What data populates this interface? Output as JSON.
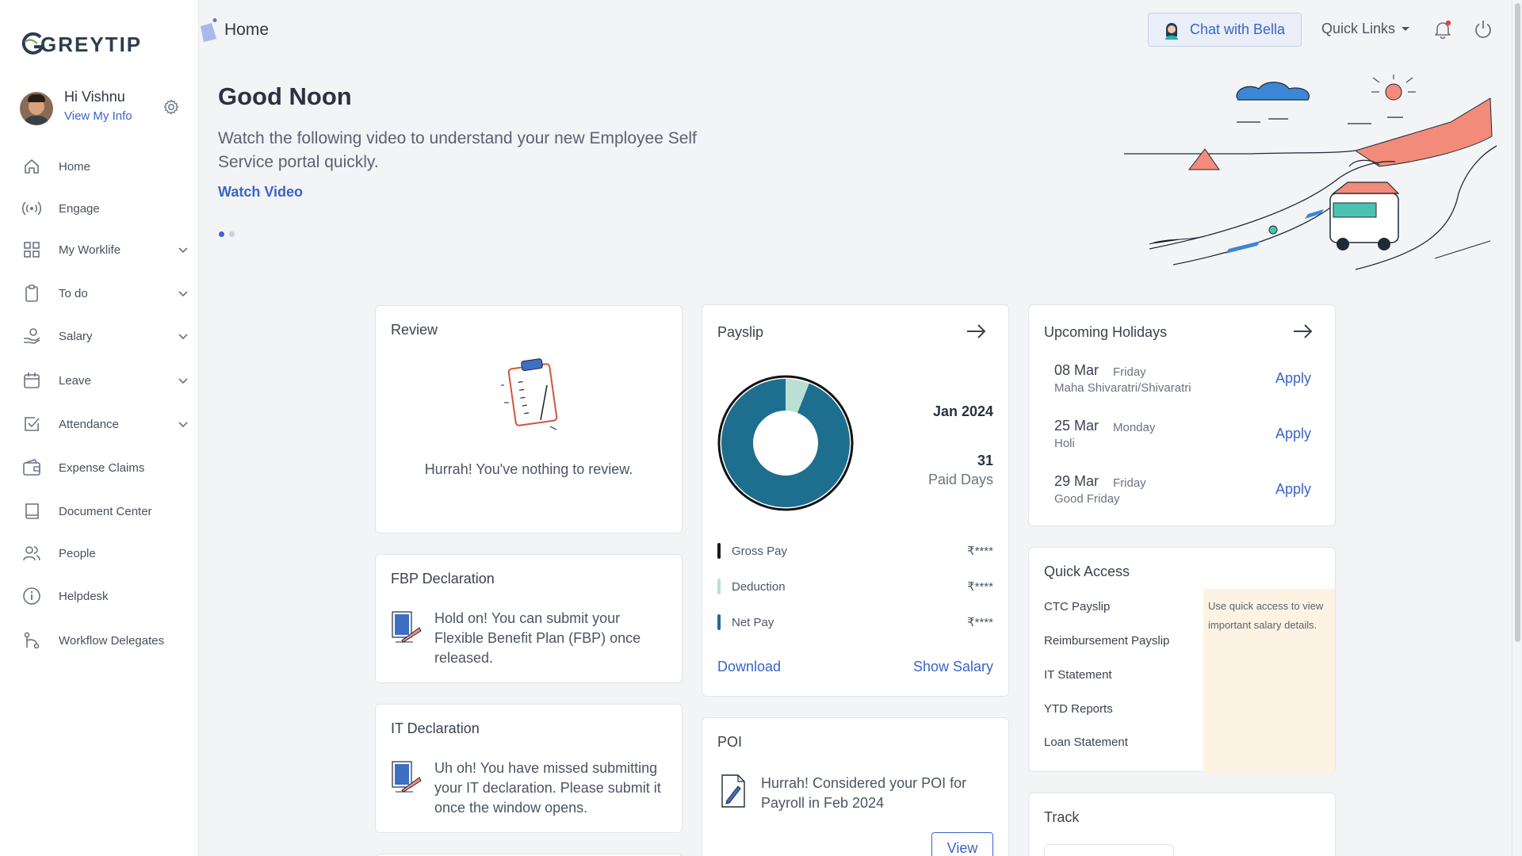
{
  "brand": {
    "name": "GREYTIP"
  },
  "user": {
    "greeting": "Hi Vishnu",
    "link": "View My Info"
  },
  "nav": [
    {
      "label": "Home",
      "icon": "home-icon",
      "expandable": false
    },
    {
      "label": "Engage",
      "icon": "broadcast-icon",
      "expandable": false
    },
    {
      "label": "My Worklife",
      "icon": "grid-icon",
      "expandable": true
    },
    {
      "label": "To do",
      "icon": "clipboard-icon",
      "expandable": true
    },
    {
      "label": "Salary",
      "icon": "hand-money-icon",
      "expandable": true
    },
    {
      "label": "Leave",
      "icon": "calendar-icon",
      "expandable": true
    },
    {
      "label": "Attendance",
      "icon": "check-square-icon",
      "expandable": true
    },
    {
      "label": "Expense Claims",
      "icon": "wallet-icon",
      "expandable": false
    },
    {
      "label": "Document Center",
      "icon": "book-icon",
      "expandable": false
    },
    {
      "label": "People",
      "icon": "people-icon",
      "expandable": false
    },
    {
      "label": "Helpdesk",
      "icon": "info-icon",
      "expandable": false
    },
    {
      "label": "Workflow Delegates",
      "icon": "workflow-icon",
      "expandable": false
    }
  ],
  "header": {
    "breadcrumb": "Home",
    "chat_label": "Chat with Bella",
    "quick_links": "Quick Links"
  },
  "hero": {
    "greeting": "Good Noon",
    "intro": "Watch the following video to understand your new Employee Self Service portal quickly.",
    "cta": "Watch Video",
    "slides": 2,
    "active_slide": 1
  },
  "review": {
    "title": "Review",
    "message": "Hurrah! You've nothing to review."
  },
  "fbp": {
    "title": "FBP Declaration",
    "message": "Hold on! You can submit your Flexible Benefit Plan (FBP) once released."
  },
  "it": {
    "title": "IT Declaration",
    "message": "Uh oh! You have missed submitting your IT declaration. Please submit it once the window opens."
  },
  "payslip": {
    "title": "Payslip",
    "month": "Jan 2024",
    "paid_days": "31",
    "paid_days_label": "Paid Days",
    "rows": [
      {
        "label": "Gross Pay",
        "value": "₹****",
        "color": "#1a1a1a"
      },
      {
        "label": "Deduction",
        "value": "₹****",
        "color": "#b9e0d2"
      },
      {
        "label": "Net Pay",
        "value": "₹****",
        "color": "#1e6f8f"
      }
    ],
    "donut_net_fraction": 0.94,
    "download": "Download",
    "show_salary": "Show Salary"
  },
  "poi": {
    "title": "POI",
    "message": "Hurrah! Considered your POI for Payroll in Feb 2024",
    "view": "View"
  },
  "holidays": {
    "title": "Upcoming Holidays",
    "items": [
      {
        "date": "08 Mar",
        "day": "Friday",
        "name": "Maha Shivaratri/Shivaratri",
        "action": "Apply"
      },
      {
        "date": "25 Mar",
        "day": "Monday",
        "name": "Holi",
        "action": "Apply"
      },
      {
        "date": "29 Mar",
        "day": "Friday",
        "name": "Good Friday",
        "action": "Apply"
      }
    ]
  },
  "quick_access": {
    "title": "Quick Access",
    "items": [
      "CTC Payslip",
      "Reimbursement Payslip",
      "IT Statement",
      "YTD Reports",
      "Loan Statement"
    ],
    "note": "Use quick access to view important salary details."
  },
  "track": {
    "title": "Track"
  },
  "colors": {
    "accent": "#3a64c8",
    "donut": "#1e6f8f",
    "donut_light": "#b9e0d2",
    "notification": "#e0413a"
  }
}
